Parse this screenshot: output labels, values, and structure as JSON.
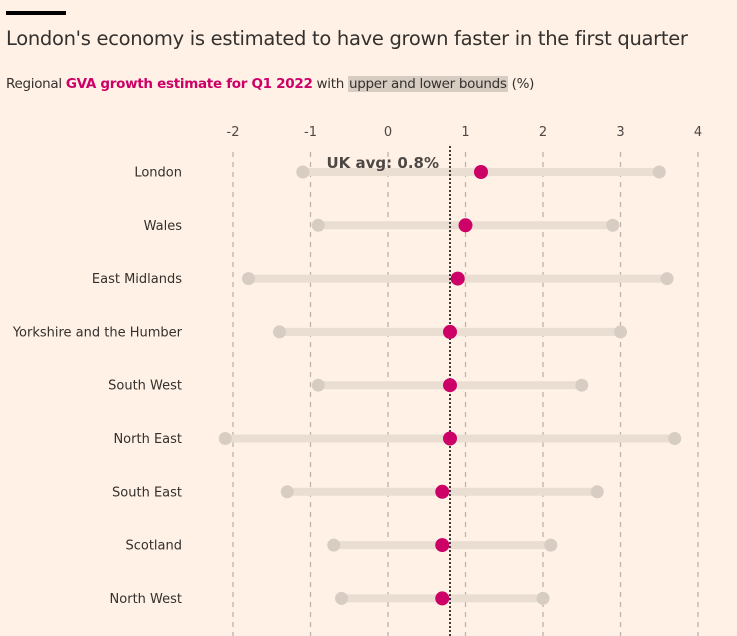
{
  "title": "London's economy is estimated to have grown faster in the first quarter",
  "subtitle": {
    "prefix": "Regional ",
    "highlight": "GVA growth estimate for Q1 2022",
    "middle": " with ",
    "bounds": "upper and lower bounds",
    "suffix": " (%)"
  },
  "colors": {
    "background": "#FFF1E5",
    "point": "#CC0066",
    "range_bar": "#EADDD2",
    "range_end": "#D8CDC3",
    "grid": "#BDB3AA",
    "avg_line": "#000000"
  },
  "chart_data": {
    "type": "dot-range",
    "title": "London's economy is estimated to have grown faster in the first quarter",
    "subtitle": "Regional GVA growth estimate for Q1 2022 with upper and lower bounds (%)",
    "xlim": [
      -2,
      4
    ],
    "xticks": [
      -2,
      -1,
      0,
      1,
      2,
      3,
      4
    ],
    "xtick_labels": [
      "-2",
      "-1",
      "0",
      "1",
      "2",
      "3",
      "4"
    ],
    "grid": "vertical dashed",
    "reference_line": {
      "value": 0.8,
      "label": "UK avg: 0.8%"
    },
    "categories": [
      "London",
      "Wales",
      "East Midlands",
      "Yorkshire and the Humber",
      "South West",
      "North East",
      "South East",
      "Scotland",
      "North West"
    ],
    "series": [
      {
        "name": "GVA growth estimate for Q1 2022",
        "values": [
          1.2,
          1.0,
          0.9,
          0.8,
          0.8,
          0.8,
          0.7,
          0.7,
          0.7
        ]
      },
      {
        "name": "lower bound",
        "values": [
          -1.1,
          -0.9,
          -1.8,
          -1.4,
          -0.9,
          -2.1,
          -1.3,
          -0.7,
          -0.6
        ]
      },
      {
        "name": "upper bound",
        "values": [
          3.5,
          2.9,
          3.6,
          3.0,
          2.5,
          3.7,
          2.7,
          2.1,
          2.0
        ]
      }
    ]
  }
}
